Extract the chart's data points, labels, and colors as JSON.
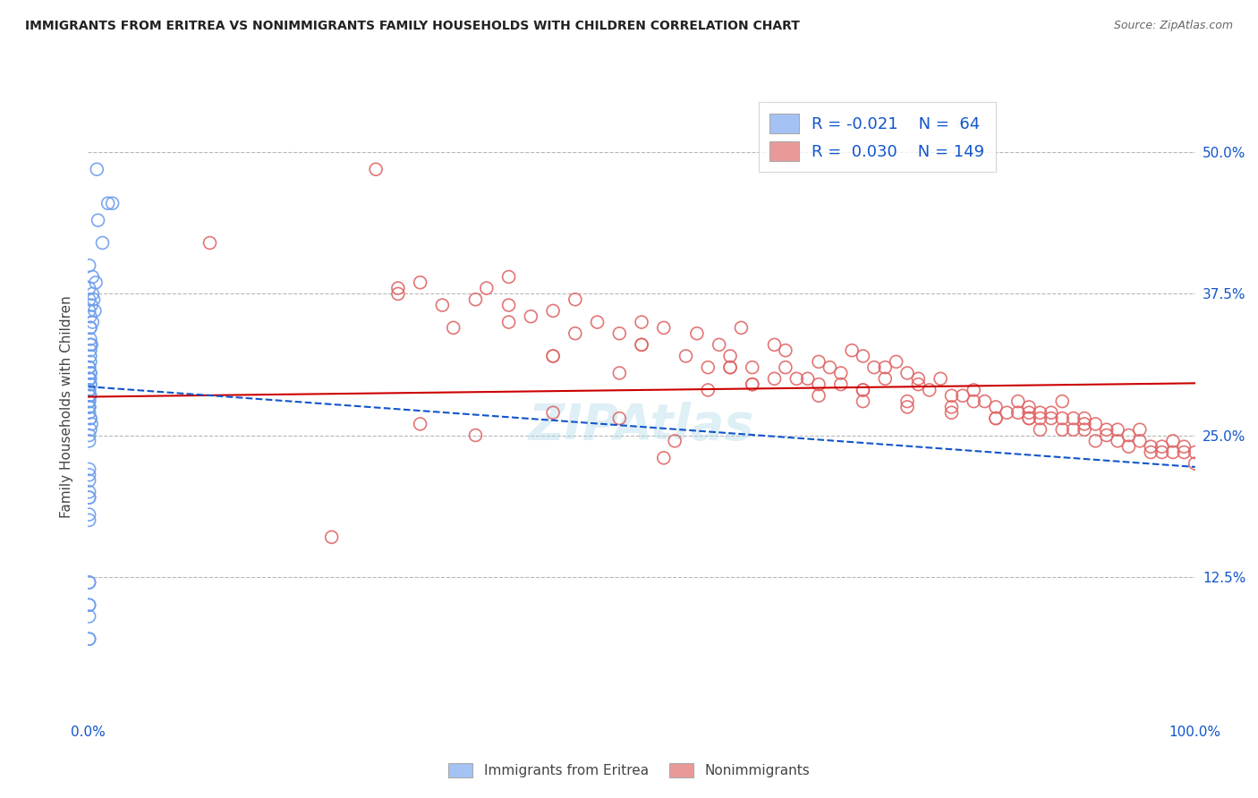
{
  "title": "IMMIGRANTS FROM ERITREA VS NONIMMIGRANTS FAMILY HOUSEHOLDS WITH CHILDREN CORRELATION CHART",
  "source": "Source: ZipAtlas.com",
  "ylabel": "Family Households with Children",
  "legend_label1": "Immigrants from Eritrea",
  "legend_label2": "Nonimmigrants",
  "blue_color": "#a4c2f4",
  "pink_color": "#ea9999",
  "blue_marker_edge": "#6d9eeb",
  "pink_marker_edge": "#e06666",
  "blue_line_color": "#1155cc",
  "pink_line_color": "#cc0000",
  "grid_color": "#b7b7b7",
  "text_color": "#1155cc",
  "label_color": "#444444",
  "background": "#ffffff",
  "blue_scatter_x": [
    0.008,
    0.018,
    0.022,
    0.009,
    0.013,
    0.004,
    0.007,
    0.004,
    0.005,
    0.003,
    0.006,
    0.002,
    0.004,
    0.002,
    0.002,
    0.002,
    0.003,
    0.002,
    0.002,
    0.002,
    0.002,
    0.001,
    0.001,
    0.002,
    0.002,
    0.002,
    0.001,
    0.002,
    0.002,
    0.001,
    0.001,
    0.001,
    0.002,
    0.001,
    0.001,
    0.001,
    0.001,
    0.001,
    0.001,
    0.002,
    0.002,
    0.003,
    0.002,
    0.001,
    0.001,
    0.001,
    0.001,
    0.001,
    0.001,
    0.001,
    0.001,
    0.001,
    0.001,
    0.001,
    0.001,
    0.001,
    0.001,
    0.001,
    0.001,
    0.001,
    0.001,
    0.001,
    0.001,
    0.001
  ],
  "blue_scatter_y": [
    0.485,
    0.455,
    0.455,
    0.44,
    0.42,
    0.39,
    0.385,
    0.375,
    0.37,
    0.365,
    0.36,
    0.355,
    0.35,
    0.345,
    0.345,
    0.335,
    0.33,
    0.33,
    0.325,
    0.32,
    0.315,
    0.31,
    0.31,
    0.305,
    0.305,
    0.3,
    0.3,
    0.295,
    0.295,
    0.29,
    0.29,
    0.285,
    0.285,
    0.28,
    0.28,
    0.275,
    0.275,
    0.275,
    0.27,
    0.265,
    0.265,
    0.26,
    0.255,
    0.25,
    0.245,
    0.22,
    0.215,
    0.21,
    0.195,
    0.195,
    0.175,
    0.2,
    0.18,
    0.12,
    0.12,
    0.1,
    0.1,
    0.09,
    0.07,
    0.07,
    0.4,
    0.38,
    0.37,
    0.36
  ],
  "pink_scatter_x": [
    0.11,
    0.26,
    0.28,
    0.3,
    0.33,
    0.35,
    0.38,
    0.38,
    0.4,
    0.42,
    0.44,
    0.46,
    0.48,
    0.5,
    0.52,
    0.53,
    0.55,
    0.57,
    0.58,
    0.59,
    0.6,
    0.6,
    0.62,
    0.63,
    0.63,
    0.64,
    0.65,
    0.66,
    0.67,
    0.68,
    0.68,
    0.69,
    0.7,
    0.7,
    0.71,
    0.72,
    0.72,
    0.73,
    0.74,
    0.74,
    0.75,
    0.75,
    0.76,
    0.77,
    0.78,
    0.78,
    0.79,
    0.8,
    0.8,
    0.81,
    0.82,
    0.82,
    0.83,
    0.84,
    0.84,
    0.85,
    0.85,
    0.85,
    0.86,
    0.86,
    0.86,
    0.87,
    0.87,
    0.88,
    0.88,
    0.88,
    0.89,
    0.89,
    0.9,
    0.9,
    0.9,
    0.91,
    0.91,
    0.92,
    0.92,
    0.93,
    0.93,
    0.94,
    0.94,
    0.95,
    0.95,
    0.96,
    0.96,
    0.97,
    0.97,
    0.98,
    0.98,
    0.99,
    0.99,
    1.0,
    1.0,
    0.36,
    0.42,
    0.48,
    0.54,
    0.58,
    0.62,
    0.66,
    0.7,
    0.28,
    0.32,
    0.38,
    0.44,
    0.5,
    0.56,
    0.6,
    0.5,
    0.58,
    0.42,
    0.3,
    0.22,
    0.35,
    0.42,
    0.48,
    0.52,
    0.56,
    0.66,
    0.7,
    0.74,
    0.78,
    0.82,
    0.85
  ],
  "pink_scatter_y": [
    0.42,
    0.485,
    0.375,
    0.385,
    0.345,
    0.37,
    0.365,
    0.39,
    0.355,
    0.36,
    0.37,
    0.35,
    0.34,
    0.33,
    0.345,
    0.245,
    0.34,
    0.33,
    0.32,
    0.345,
    0.295,
    0.31,
    0.33,
    0.325,
    0.31,
    0.3,
    0.3,
    0.315,
    0.31,
    0.305,
    0.295,
    0.325,
    0.32,
    0.29,
    0.31,
    0.3,
    0.31,
    0.315,
    0.305,
    0.28,
    0.3,
    0.295,
    0.29,
    0.3,
    0.285,
    0.275,
    0.285,
    0.29,
    0.28,
    0.28,
    0.275,
    0.265,
    0.27,
    0.27,
    0.28,
    0.27,
    0.275,
    0.265,
    0.27,
    0.265,
    0.255,
    0.265,
    0.27,
    0.265,
    0.255,
    0.28,
    0.265,
    0.255,
    0.26,
    0.265,
    0.255,
    0.26,
    0.245,
    0.255,
    0.25,
    0.245,
    0.255,
    0.25,
    0.24,
    0.245,
    0.255,
    0.24,
    0.235,
    0.24,
    0.235,
    0.245,
    0.235,
    0.24,
    0.235,
    0.235,
    0.225,
    0.38,
    0.32,
    0.305,
    0.32,
    0.31,
    0.3,
    0.295,
    0.29,
    0.38,
    0.365,
    0.35,
    0.34,
    0.33,
    0.31,
    0.295,
    0.35,
    0.31,
    0.32,
    0.26,
    0.16,
    0.25,
    0.27,
    0.265,
    0.23,
    0.29,
    0.285,
    0.28,
    0.275,
    0.27,
    0.265,
    0.265
  ],
  "blue_trend_x": [
    0.0,
    1.0
  ],
  "blue_trend_y": [
    0.293,
    0.222
  ],
  "pink_trend_x": [
    0.0,
    1.0
  ],
  "pink_trend_y": [
    0.284,
    0.296
  ],
  "xlim": [
    0.0,
    1.0
  ],
  "ylim": [
    0.0,
    0.55
  ],
  "ytick_vals": [
    0.125,
    0.25,
    0.375,
    0.5
  ],
  "ytick_labels": [
    "12.5%",
    "25.0%",
    "37.5%",
    "50.0%"
  ],
  "watermark": "ZIPAtlas"
}
